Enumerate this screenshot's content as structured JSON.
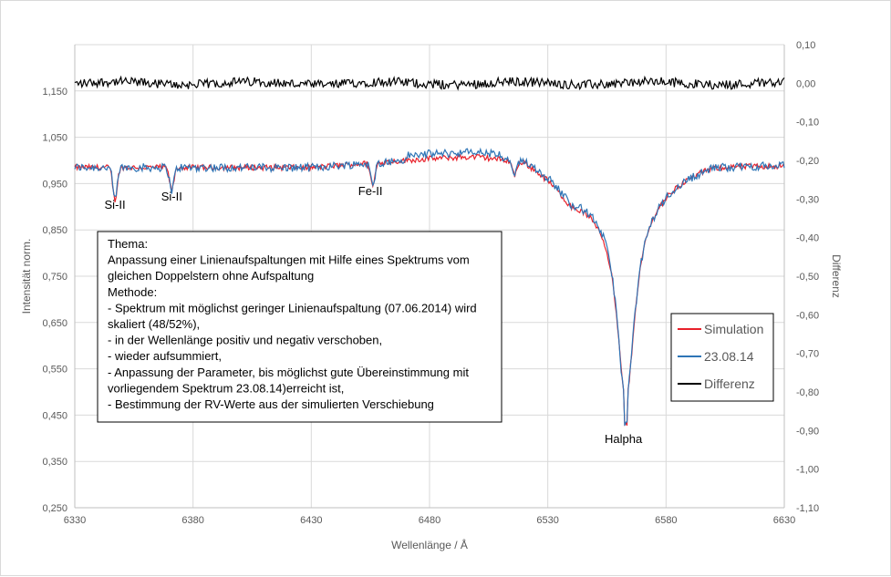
{
  "chart_data": {
    "type": "line",
    "title": "",
    "xlabel": "Wellenlänge / Å",
    "ylabel_left": "Intensität norm.",
    "ylabel_right": "Differenz",
    "xlim": [
      6330,
      6630
    ],
    "ylim_left": [
      0.25,
      1.25
    ],
    "ylim_right": [
      -1.1,
      0.1
    ],
    "x_ticks": [
      "6330",
      "6380",
      "6430",
      "6480",
      "6530",
      "6580",
      "6630"
    ],
    "y_left_ticks": [
      "0,250",
      "0,350",
      "0,450",
      "0,550",
      "0,650",
      "0,750",
      "0,850",
      "0,950",
      "1,050",
      "1,150"
    ],
    "y_right_ticks": [
      "0,10",
      "0,00",
      "-0,10",
      "-0,20",
      "-0,30",
      "-0,40",
      "-0,50",
      "-0,60",
      "-0,70",
      "-0,80",
      "-0,90",
      "-1,00",
      "-1,10"
    ],
    "grid": true,
    "legend_position": "right",
    "series": [
      {
        "name": "Simulation",
        "axis": "left",
        "color": "#e8202a"
      },
      {
        "name": "23.08.14",
        "axis": "left",
        "color": "#2e75b6"
      },
      {
        "name": "Differenz",
        "axis": "right",
        "color": "#000000"
      }
    ],
    "continuum": [
      {
        "x": 6330,
        "y": 0.985
      },
      {
        "x": 6380,
        "y": 0.985
      },
      {
        "x": 6430,
        "y": 0.985
      },
      {
        "x": 6480,
        "y": 1.005
      },
      {
        "x": 6500,
        "y": 1.01
      },
      {
        "x": 6520,
        "y": 1.0
      },
      {
        "x": 6530,
        "y": 0.965
      },
      {
        "x": 6540,
        "y": 0.92
      },
      {
        "x": 6580,
        "y": 0.96
      },
      {
        "x": 6600,
        "y": 0.99
      },
      {
        "x": 6630,
        "y": 0.99
      }
    ],
    "lines": [
      {
        "label": "Si-II",
        "x": 6347,
        "depth": 0.07
      },
      {
        "label": "Si-II",
        "x": 6371,
        "depth": 0.05
      },
      {
        "label": "Fe-II",
        "x": 6456,
        "depth": 0.05
      },
      {
        "label": "",
        "x": 6516,
        "depth": 0.03
      },
      {
        "label": "Halpha",
        "x": 6563,
        "depth": 0.55
      }
    ],
    "halpha_min": 0.43,
    "difference_level": 0.0
  },
  "annotations": {
    "si2_a": "Si-II",
    "si2_b": "Si-II",
    "fe2": "Fe-II",
    "halpha": "Halpha"
  },
  "textbox": {
    "lines": [
      "Thema:",
      "Anpassung einer Linienaufspaltungen mit Hilfe eines Spektrums vom",
      "gleichen Doppelstern ohne  Aufspaltung",
      "Methode:",
      "- Spektrum mit möglichst geringer Linienaufspaltung (07.06.2014)  wird",
      "   skaliert (48/52%),",
      "- in der Wellenlänge positiv und negativ verschoben,",
      "- wieder aufsummiert,",
      "- Anpassung der Parameter, bis möglichst gute Übereinstimmung mit",
      "   vorliegendem Spektrum 23.08.14)erreicht ist,",
      "- Bestimmung der RV-Werte aus der simulierten Verschiebung"
    ]
  },
  "legend": {
    "items": [
      {
        "label": "Simulation",
        "color": "#e8202a"
      },
      {
        "label": "23.08.14",
        "color": "#2e75b6"
      },
      {
        "label": "Differenz",
        "color": "#000000"
      }
    ]
  }
}
